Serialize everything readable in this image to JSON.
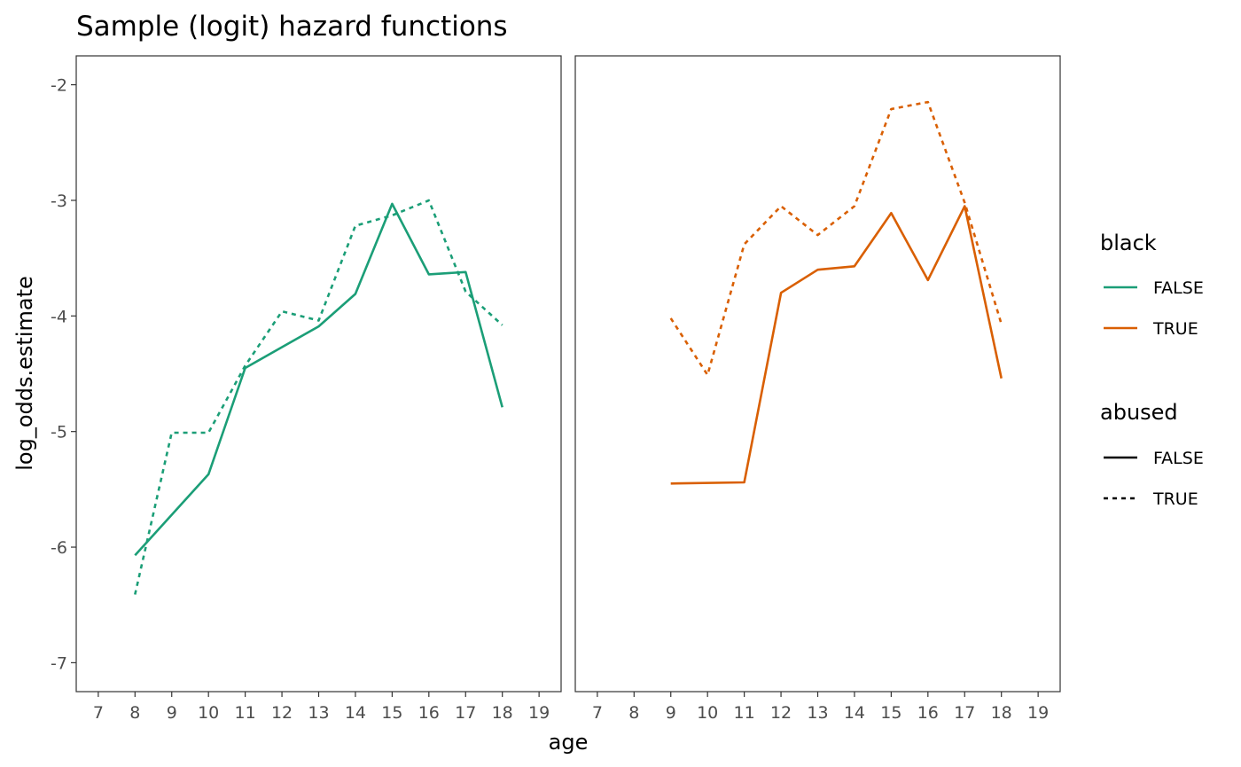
{
  "chart_data": {
    "type": "line",
    "title": "Sample (logit) hazard functions",
    "xlabel": "age",
    "ylabel": "log_odds.estimate",
    "xlim": [
      6.4,
      19.6
    ],
    "ylim": [
      -7.25,
      -1.75
    ],
    "xticks": [
      "7",
      "8",
      "9",
      "10",
      "11",
      "12",
      "13",
      "14",
      "15",
      "16",
      "17",
      "18",
      "19"
    ],
    "yticks": [
      -2,
      -3,
      -4,
      -5,
      -6,
      -7
    ],
    "grid": false,
    "legend_placement": "right",
    "legend": {
      "color_title": "black",
      "color_items": [
        {
          "label": "FALSE",
          "color": "#1b9e77"
        },
        {
          "label": "TRUE",
          "color": "#d95f02"
        }
      ],
      "linetype_title": "abused",
      "linetype_items": [
        {
          "label": "FALSE",
          "dash": "solid"
        },
        {
          "label": "TRUE",
          "dash": "dashed"
        }
      ]
    },
    "panels": [
      {
        "black": "FALSE",
        "series": [
          {
            "abused": "FALSE",
            "color": "#1b9e77",
            "dash": "solid",
            "x": [
              8,
              10,
              11,
              12,
              13,
              14,
              15,
              16,
              17,
              18
            ],
            "y": [
              -6.07,
              -5.37,
              -4.45,
              -4.27,
              -4.09,
              -3.81,
              -3.03,
              -3.64,
              -3.62,
              -4.79
            ]
          },
          {
            "abused": "TRUE",
            "color": "#1b9e77",
            "dash": "dashed",
            "x": [
              8,
              9,
              10,
              11,
              12,
              13,
              14,
              15,
              16,
              17,
              18
            ],
            "y": [
              -6.41,
              -5.01,
              -5.01,
              -4.43,
              -3.96,
              -4.04,
              -3.22,
              -3.13,
              -3.0,
              -3.79,
              -4.08
            ]
          }
        ]
      },
      {
        "black": "TRUE",
        "series": [
          {
            "abused": "FALSE",
            "color": "#d95f02",
            "dash": "solid",
            "x": [
              9,
              11,
              12,
              13,
              14,
              15,
              16,
              17,
              18
            ],
            "y": [
              -5.45,
              -5.44,
              -3.8,
              -3.6,
              -3.57,
              -3.11,
              -3.69,
              -3.05,
              -4.54
            ]
          },
          {
            "abused": "TRUE",
            "color": "#d95f02",
            "dash": "dashed",
            "x": [
              9,
              10,
              11,
              12,
              13,
              14,
              15,
              16,
              17,
              18
            ],
            "y": [
              -4.02,
              -4.51,
              -3.38,
              -3.05,
              -3.3,
              -3.05,
              -2.21,
              -2.15,
              -3.02,
              -4.07
            ]
          }
        ]
      }
    ]
  }
}
